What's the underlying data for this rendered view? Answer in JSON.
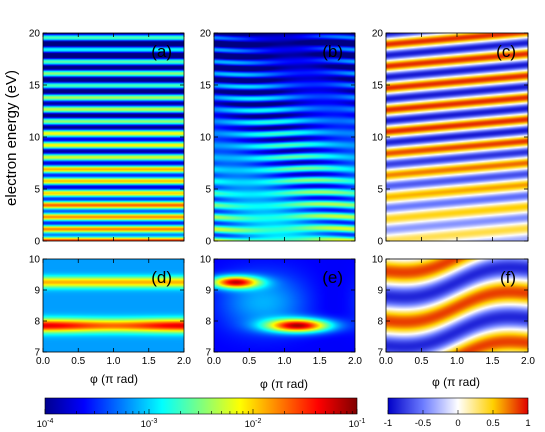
{
  "chart_data": {
    "type": "heatmap",
    "ylabel": "electron energy (eV)",
    "xlabel": "φ (π rad)",
    "x_ticks": [
      "0.0",
      "0.5",
      "1.0",
      "1.5",
      "2.0"
    ],
    "xlim": [
      0.0,
      2.0
    ],
    "panels": [
      {
        "label": "(a)",
        "ylim": [
          0,
          20
        ],
        "y_ticks": [
          "0",
          "5",
          "10",
          "15",
          "20"
        ],
        "colorscale": "log",
        "description": "bands independent of phi"
      },
      {
        "label": "(b)",
        "ylim": [
          0,
          20
        ],
        "y_ticks": [
          "0",
          "5",
          "10",
          "15",
          "20"
        ],
        "colorscale": "log",
        "description": "bands modulated by phi"
      },
      {
        "label": "(c)",
        "ylim": [
          0,
          20
        ],
        "y_ticks": [
          "0",
          "5",
          "10",
          "15",
          "20"
        ],
        "colorscale": "diverging",
        "description": "tilted positive/negative stripes"
      },
      {
        "label": "(d)",
        "ylim": [
          7,
          10
        ],
        "y_ticks": [
          "7",
          "8",
          "9",
          "10"
        ],
        "colorscale": "log",
        "peaks_eV": [
          7.85,
          9.25
        ]
      },
      {
        "label": "(e)",
        "ylim": [
          7,
          10
        ],
        "y_ticks": [
          "7",
          "8",
          "9",
          "10"
        ],
        "colorscale": "log",
        "peaks": [
          {
            "phi": 0.3,
            "energy": 9.25
          },
          {
            "phi": 1.2,
            "energy": 7.85
          }
        ]
      },
      {
        "label": "(f)",
        "ylim": [
          7,
          10
        ],
        "y_ticks": [
          "7",
          "8",
          "9",
          "10"
        ],
        "colorscale": "diverging"
      }
    ],
    "colorbars": [
      {
        "scale": "log",
        "range": [
          0.0001,
          0.1
        ],
        "tick_labels": [
          {
            "base": "10",
            "exp": "-4"
          },
          {
            "base": "10",
            "exp": "-3"
          },
          {
            "base": "10",
            "exp": "-2"
          },
          {
            "base": "10",
            "exp": "-1"
          }
        ]
      },
      {
        "scale": "linear",
        "range": [
          -1,
          1
        ],
        "tick_labels": [
          "-1",
          "-0.5",
          "0",
          "0.5",
          "1"
        ]
      }
    ]
  }
}
